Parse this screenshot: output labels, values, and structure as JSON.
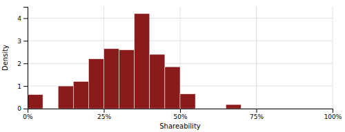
{
  "chart_data": {
    "type": "histogram",
    "xlabel": "Shareability",
    "ylabel": "Density",
    "color": "#8B1A1A",
    "bins": [
      0.0,
      0.05,
      0.1,
      0.15,
      0.2,
      0.25,
      0.3,
      0.35,
      0.4,
      0.45,
      0.5,
      0.55,
      0.6,
      0.65,
      0.7,
      0.75,
      0.8,
      0.85,
      0.9,
      0.95,
      1.0
    ],
    "values": [
      0.62,
      0.0,
      1.0,
      1.2,
      2.2,
      2.65,
      2.6,
      4.2,
      2.4,
      1.85,
      0.65,
      0.0,
      0.0,
      0.18,
      0.0,
      0.0,
      0.0,
      0.0,
      0.0,
      0.0
    ],
    "xlim": [
      0,
      1.0
    ],
    "ylim": [
      0,
      4.5
    ],
    "xticks": [
      {
        "value": 0,
        "label": "0%"
      },
      {
        "value": 0.25,
        "label": "25%"
      },
      {
        "value": 0.5,
        "label": "50%"
      },
      {
        "value": 0.75,
        "label": "75%"
      },
      {
        "value": 1.0,
        "label": "100%"
      }
    ],
    "yticks": [
      0,
      1,
      2,
      3,
      4
    ],
    "grid": true
  }
}
